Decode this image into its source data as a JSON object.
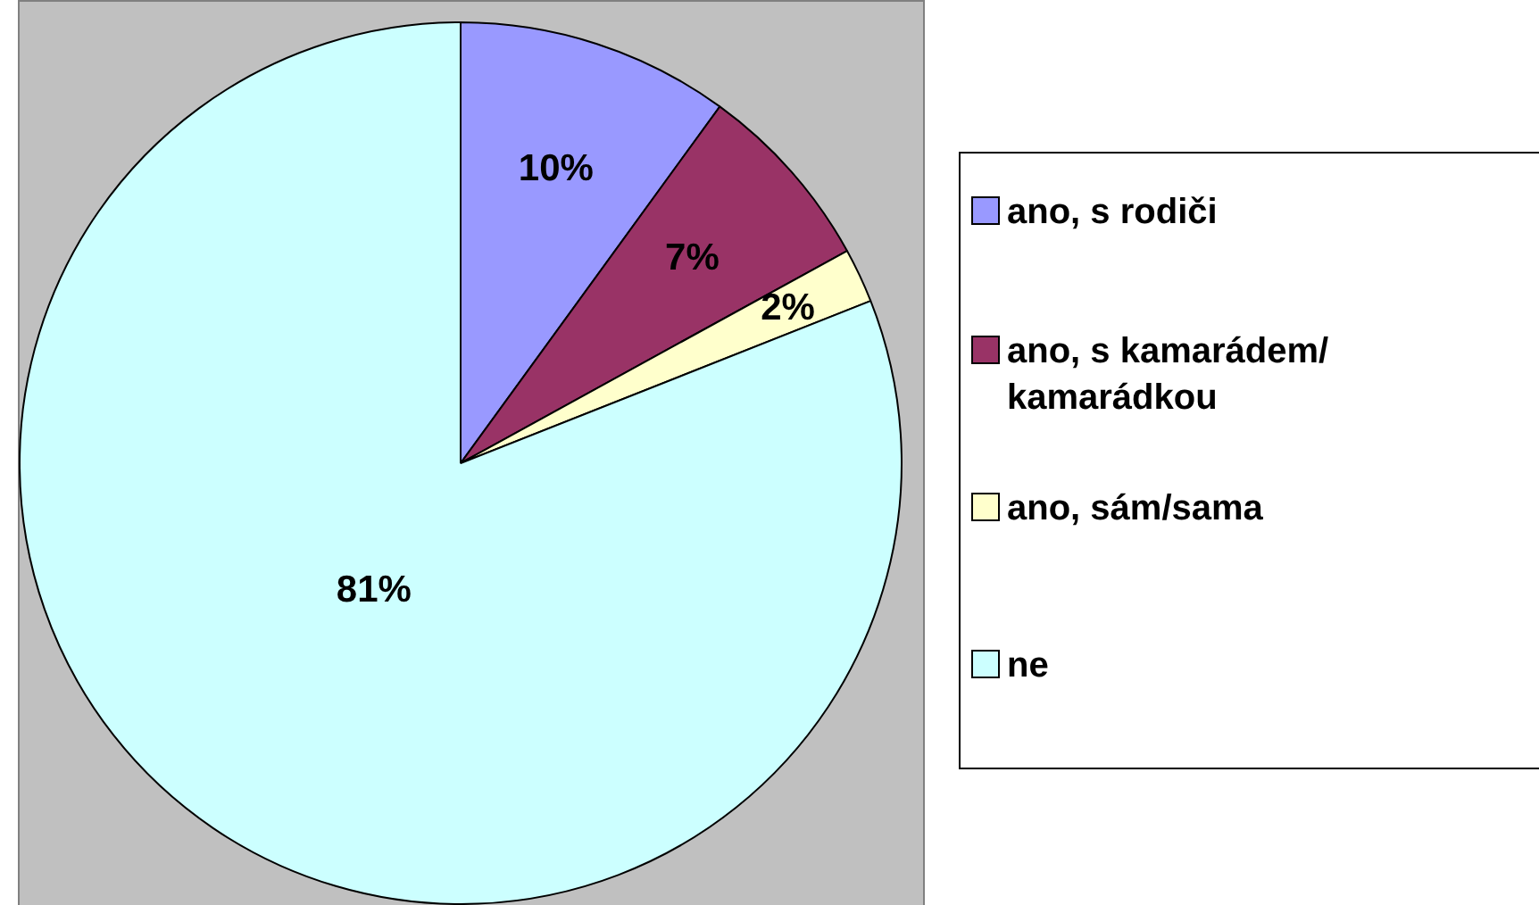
{
  "chart_data": {
    "type": "pie",
    "categories": [
      "ano, s rodiči",
      "ano, s kamarádem/ kamarádkou",
      "ano, sám/sama",
      "ne"
    ],
    "values": [
      10,
      7,
      2,
      81
    ],
    "colors": [
      "#9999ff",
      "#993366",
      "#ffffcc",
      "#ccffff"
    ],
    "value_labels": [
      "10%",
      "7%",
      "2%",
      "81%"
    ],
    "legend": "right"
  }
}
